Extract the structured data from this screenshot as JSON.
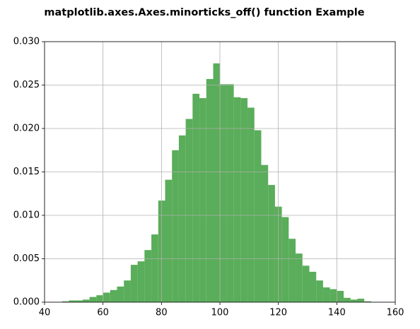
{
  "chart_data": {
    "type": "histogram",
    "title": "matplotlib.axes.Axes.minorticks_off() function Example",
    "bins": [
      46,
      48.35,
      50.7,
      53.05,
      55.4,
      57.75,
      60.1,
      62.45,
      64.8,
      67.15,
      69.5,
      71.85,
      74.2,
      76.55,
      78.9,
      81.25,
      83.6,
      85.95,
      88.3,
      90.65,
      93,
      95.35,
      97.7,
      100.05,
      102.4,
      104.75,
      107.1,
      109.45,
      111.8,
      114.15,
      116.5,
      118.85,
      121.2,
      123.55,
      125.9,
      128.25,
      130.6,
      132.95,
      135.3,
      137.65,
      140,
      142.35,
      144.7,
      147.05,
      149.4,
      151.75
    ],
    "values": [
      0.0001,
      0.0002,
      0.0002,
      0.0003,
      0.0006,
      0.0008,
      0.0011,
      0.0014,
      0.0018,
      0.0025,
      0.0043,
      0.0047,
      0.006,
      0.0078,
      0.0117,
      0.0141,
      0.0175,
      0.0192,
      0.0211,
      0.024,
      0.0235,
      0.0257,
      0.0275,
      0.0251,
      0.0251,
      0.0236,
      0.0235,
      0.0224,
      0.0198,
      0.0158,
      0.0135,
      0.011,
      0.0098,
      0.0073,
      0.0056,
      0.0042,
      0.0035,
      0.0025,
      0.0017,
      0.0015,
      0.0013,
      0.0005,
      0.0003,
      0.0004,
      0.0001
    ],
    "color": "#5aad5a",
    "xlim": [
      40,
      160
    ],
    "xticks": [
      40,
      60,
      80,
      100,
      120,
      140,
      160
    ],
    "ylim": [
      0,
      0.03
    ],
    "yticks": [
      {
        "value": 0,
        "label": "0.000"
      },
      {
        "value": 0.005,
        "label": "0.005"
      },
      {
        "value": 0.01,
        "label": "0.010"
      },
      {
        "value": 0.015,
        "label": "0.015"
      },
      {
        "value": 0.02,
        "label": "0.020"
      },
      {
        "value": 0.025,
        "label": "0.025"
      },
      {
        "value": 0.03,
        "label": "0.030"
      }
    ],
    "grid": true
  }
}
